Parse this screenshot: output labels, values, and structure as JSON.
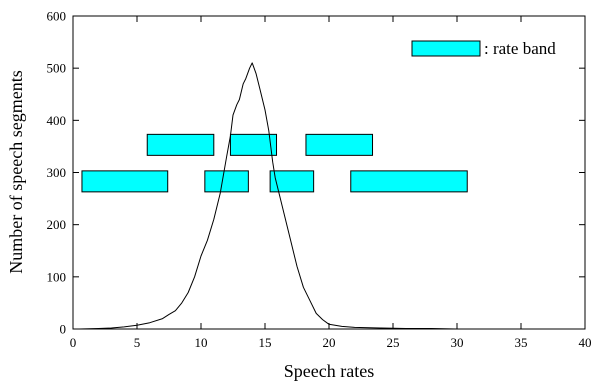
{
  "chart_data": {
    "type": "line",
    "xlabel": "Speech rates",
    "ylabel": "Number of speech segments",
    "xlim": [
      0,
      40
    ],
    "ylim": [
      0,
      600
    ],
    "x_ticks": [
      0,
      5,
      10,
      15,
      20,
      25,
      30,
      35,
      40
    ],
    "y_ticks": [
      0,
      100,
      200,
      300,
      400,
      500,
      600
    ],
    "x_tick_labels": [
      "0",
      "5",
      "10",
      "15",
      "20",
      "25",
      "30",
      "35",
      "40"
    ],
    "y_tick_labels": [
      "0",
      "100",
      "200",
      "300",
      "400",
      "500",
      "600"
    ],
    "grid": false,
    "legend": {
      "label": ": rate band",
      "placement": "top-right",
      "color": "#00ffff"
    },
    "series": [
      {
        "x": [
          0.5,
          2,
          3,
          4,
          5,
          6,
          7,
          7.5,
          8,
          8.5,
          9,
          9.5,
          10,
          10.5,
          11,
          11.5,
          12,
          12.3,
          12.5,
          12.8,
          13,
          13.3,
          13.5,
          13.8,
          14,
          14.3,
          14.6,
          15,
          15.3,
          15.6,
          15.8,
          16,
          16.5,
          17,
          17.5,
          18,
          18.5,
          19,
          19.5,
          20,
          21,
          22,
          24,
          26,
          28,
          30,
          32,
          34,
          36
        ],
        "y": [
          0,
          1,
          2,
          4,
          7,
          12,
          20,
          28,
          35,
          50,
          70,
          100,
          140,
          170,
          210,
          260,
          330,
          370,
          410,
          430,
          440,
          470,
          480,
          500,
          510,
          490,
          460,
          420,
          380,
          320,
          290,
          270,
          220,
          170,
          120,
          80,
          55,
          30,
          18,
          9,
          5,
          3,
          2,
          1,
          1,
          0,
          0,
          0,
          0
        ]
      }
    ],
    "rate_bands": [
      {
        "x_start": 0.7,
        "x_end": 7.4,
        "y_center": 283
      },
      {
        "x_start": 5.8,
        "x_end": 11.0,
        "y_center": 353
      },
      {
        "x_start": 10.3,
        "x_end": 13.7,
        "y_center": 283
      },
      {
        "x_start": 12.3,
        "x_end": 15.9,
        "y_center": 353
      },
      {
        "x_start": 15.4,
        "x_end": 18.8,
        "y_center": 283
      },
      {
        "x_start": 18.2,
        "x_end": 23.4,
        "y_center": 353
      },
      {
        "x_start": 21.7,
        "x_end": 30.8,
        "y_center": 283
      }
    ],
    "colors": {
      "band_fill": "#00ffff",
      "line": "#000000",
      "axis": "#000000"
    }
  }
}
